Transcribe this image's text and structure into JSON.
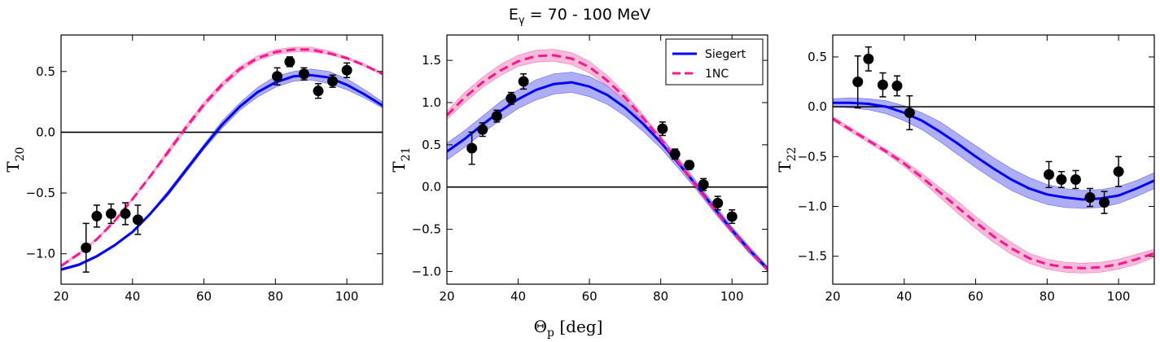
{
  "figure": {
    "title": "Eγ = 70 - 100 MeV",
    "shared_xlabel": "Θp [deg]"
  },
  "colors": {
    "siegert": "#0000ff",
    "siegert_band": "#6b6bee",
    "onenc": "#ff1493",
    "onenc_band": "#f6a6cc",
    "data": "#000000",
    "zero_line": "#000000"
  },
  "chart_data": [
    {
      "type": "line",
      "ylabel": "T20",
      "xlim": [
        20,
        110
      ],
      "ylim": [
        -1.25,
        0.8
      ],
      "xticks": [
        20,
        40,
        60,
        80,
        100
      ],
      "yticks": [
        -1.0,
        -0.5,
        0.0,
        0.5
      ],
      "ytick_labels": [
        "−1.0",
        "−0.5",
        "0.0",
        "0.5"
      ],
      "zero_line": true,
      "legend": null,
      "series": [
        {
          "name": "Siegert",
          "style": "solid",
          "x": [
            20,
            25,
            30,
            35,
            40,
            45,
            50,
            55,
            60,
            65,
            70,
            75,
            80,
            85,
            90,
            95,
            100,
            105,
            110
          ],
          "y": [
            -1.13,
            -1.09,
            -1.02,
            -0.93,
            -0.82,
            -0.67,
            -0.5,
            -0.31,
            -0.12,
            0.06,
            0.21,
            0.33,
            0.41,
            0.46,
            0.47,
            0.45,
            0.39,
            0.31,
            0.22
          ],
          "band_lower": [
            -1.14,
            -1.1,
            -1.03,
            -0.94,
            -0.83,
            -0.68,
            -0.52,
            -0.33,
            -0.14,
            0.03,
            0.18,
            0.29,
            0.37,
            0.42,
            0.43,
            0.4,
            0.35,
            0.28,
            0.2
          ],
          "band_upper": [
            -1.12,
            -1.08,
            -1.01,
            -0.92,
            -0.81,
            -0.66,
            -0.48,
            -0.29,
            -0.1,
            0.09,
            0.24,
            0.37,
            0.46,
            0.5,
            0.52,
            0.5,
            0.44,
            0.35,
            0.25
          ]
        },
        {
          "name": "1NC",
          "style": "dashed",
          "x": [
            20,
            25,
            30,
            35,
            40,
            45,
            50,
            55,
            60,
            65,
            70,
            75,
            80,
            85,
            90,
            95,
            100,
            105,
            110
          ],
          "y": [
            -1.1,
            -1.0,
            -0.88,
            -0.73,
            -0.55,
            -0.36,
            -0.16,
            0.04,
            0.23,
            0.39,
            0.52,
            0.61,
            0.66,
            0.68,
            0.68,
            0.65,
            0.61,
            0.55,
            0.48
          ],
          "band_lower": [
            -1.11,
            -1.01,
            -0.89,
            -0.74,
            -0.56,
            -0.37,
            -0.18,
            0.02,
            0.21,
            0.37,
            0.5,
            0.59,
            0.64,
            0.66,
            0.66,
            0.64,
            0.6,
            0.54,
            0.47
          ],
          "band_upper": [
            -1.09,
            -0.99,
            -0.87,
            -0.72,
            -0.54,
            -0.35,
            -0.14,
            0.06,
            0.25,
            0.41,
            0.54,
            0.63,
            0.68,
            0.7,
            0.7,
            0.67,
            0.62,
            0.56,
            0.49
          ]
        }
      ],
      "points": {
        "x": [
          27,
          30,
          34,
          38,
          41.5,
          80.5,
          84,
          88,
          92,
          96,
          100
        ],
        "y": [
          -0.95,
          -0.69,
          -0.67,
          -0.67,
          -0.72,
          0.46,
          0.58,
          0.48,
          0.34,
          0.42,
          0.51
        ],
        "err": [
          0.2,
          0.09,
          0.08,
          0.09,
          0.12,
          0.07,
          0.04,
          0.05,
          0.06,
          0.05,
          0.06
        ]
      }
    },
    {
      "type": "line",
      "ylabel": "T21",
      "xlim": [
        20,
        110
      ],
      "ylim": [
        -1.15,
        1.8
      ],
      "xticks": [
        20,
        40,
        60,
        80,
        100
      ],
      "yticks": [
        -1.0,
        -0.5,
        0.0,
        0.5,
        1.0,
        1.5
      ],
      "ytick_labels": [
        "−1.0",
        "−0.5",
        "0.0",
        "0.5",
        "1.0",
        "1.5"
      ],
      "zero_line": true,
      "legend": {
        "position": "top-right",
        "entries": [
          "Siegert",
          "1NC"
        ]
      },
      "series": [
        {
          "name": "Siegert",
          "style": "solid",
          "x": [
            20,
            25,
            30,
            35,
            40,
            45,
            50,
            55,
            60,
            65,
            70,
            75,
            80,
            85,
            90,
            95,
            100,
            105,
            110
          ],
          "y": [
            0.42,
            0.57,
            0.74,
            0.9,
            1.04,
            1.15,
            1.22,
            1.24,
            1.19,
            1.09,
            0.94,
            0.75,
            0.53,
            0.28,
            0.02,
            -0.25,
            -0.51,
            -0.75,
            -0.97
          ],
          "band_lower": [
            0.32,
            0.47,
            0.64,
            0.79,
            0.93,
            1.03,
            1.1,
            1.12,
            1.07,
            0.98,
            0.84,
            0.66,
            0.46,
            0.22,
            -0.03,
            -0.3,
            -0.55,
            -0.79,
            -1.0
          ],
          "band_upper": [
            0.52,
            0.67,
            0.84,
            1.01,
            1.15,
            1.27,
            1.34,
            1.36,
            1.31,
            1.2,
            1.04,
            0.84,
            0.6,
            0.34,
            0.07,
            -0.2,
            -0.47,
            -0.71,
            -0.94
          ]
        },
        {
          "name": "1NC",
          "style": "dashed",
          "x": [
            20,
            25,
            30,
            35,
            40,
            45,
            50,
            55,
            60,
            65,
            70,
            75,
            80,
            85,
            90,
            95,
            100,
            105,
            110
          ],
          "y": [
            0.85,
            1.06,
            1.24,
            1.38,
            1.49,
            1.55,
            1.56,
            1.52,
            1.42,
            1.26,
            1.06,
            0.82,
            0.56,
            0.29,
            0.01,
            -0.26,
            -0.52,
            -0.76,
            -0.98
          ],
          "band_lower": [
            0.8,
            1.0,
            1.18,
            1.32,
            1.43,
            1.48,
            1.49,
            1.45,
            1.35,
            1.2,
            1.01,
            0.78,
            0.53,
            0.26,
            -0.01,
            -0.28,
            -0.54,
            -0.78,
            -0.99
          ],
          "band_upper": [
            0.9,
            1.12,
            1.3,
            1.45,
            1.56,
            1.62,
            1.63,
            1.59,
            1.49,
            1.32,
            1.11,
            0.86,
            0.59,
            0.32,
            0.03,
            -0.24,
            -0.5,
            -0.74,
            -0.97
          ]
        }
      ],
      "points": {
        "x": [
          27,
          30,
          34,
          38,
          41.5,
          80.5,
          84,
          88,
          92,
          96,
          100
        ],
        "y": [
          0.46,
          0.68,
          0.84,
          1.05,
          1.25,
          0.69,
          0.39,
          0.26,
          0.03,
          -0.19,
          -0.35
        ],
        "err": [
          0.19,
          0.08,
          0.07,
          0.07,
          0.09,
          0.08,
          0.06,
          0.05,
          0.07,
          0.08,
          0.08
        ]
      }
    },
    {
      "type": "line",
      "ylabel": "T22",
      "xlim": [
        20,
        110
      ],
      "ylim": [
        -1.78,
        0.72
      ],
      "xticks": [
        20,
        40,
        60,
        80,
        100
      ],
      "yticks": [
        -1.5,
        -1.0,
        -0.5,
        0.0,
        0.5
      ],
      "ytick_labels": [
        "−1.5",
        "−1.0",
        "−0.5",
        "0.0",
        "0.5"
      ],
      "zero_line": true,
      "legend": null,
      "series": [
        {
          "name": "Siegert",
          "style": "solid",
          "x": [
            20,
            25,
            30,
            35,
            40,
            45,
            50,
            55,
            60,
            65,
            70,
            75,
            80,
            85,
            90,
            95,
            100,
            105,
            110
          ],
          "y": [
            0.04,
            0.04,
            0.03,
            0.0,
            -0.06,
            -0.14,
            -0.25,
            -0.37,
            -0.5,
            -0.62,
            -0.73,
            -0.82,
            -0.88,
            -0.91,
            -0.93,
            -0.92,
            -0.89,
            -0.82,
            -0.74
          ],
          "band_lower": [
            0.0,
            -0.01,
            -0.03,
            -0.07,
            -0.14,
            -0.23,
            -0.35,
            -0.48,
            -0.61,
            -0.73,
            -0.84,
            -0.92,
            -0.98,
            -1.01,
            -1.02,
            -1.01,
            -0.97,
            -0.9,
            -0.82
          ],
          "band_upper": [
            0.08,
            0.09,
            0.08,
            0.06,
            0.01,
            -0.06,
            -0.15,
            -0.27,
            -0.39,
            -0.51,
            -0.62,
            -0.71,
            -0.78,
            -0.82,
            -0.84,
            -0.83,
            -0.8,
            -0.74,
            -0.66
          ]
        },
        {
          "name": "1NC",
          "style": "dashed",
          "x": [
            20,
            25,
            30,
            35,
            40,
            45,
            50,
            55,
            60,
            65,
            70,
            75,
            80,
            85,
            90,
            95,
            100,
            105,
            110
          ],
          "y": [
            -0.12,
            -0.23,
            -0.34,
            -0.45,
            -0.57,
            -0.71,
            -0.86,
            -1.01,
            -1.16,
            -1.3,
            -1.42,
            -1.52,
            -1.58,
            -1.61,
            -1.62,
            -1.61,
            -1.58,
            -1.53,
            -1.47
          ],
          "band_lower": [
            -0.14,
            -0.25,
            -0.36,
            -0.47,
            -0.6,
            -0.75,
            -0.91,
            -1.07,
            -1.22,
            -1.36,
            -1.48,
            -1.57,
            -1.63,
            -1.66,
            -1.67,
            -1.66,
            -1.63,
            -1.58,
            -1.51
          ],
          "band_upper": [
            -0.1,
            -0.21,
            -0.32,
            -0.43,
            -0.54,
            -0.67,
            -0.81,
            -0.95,
            -1.1,
            -1.24,
            -1.36,
            -1.47,
            -1.53,
            -1.56,
            -1.57,
            -1.56,
            -1.53,
            -1.48,
            -1.43
          ]
        }
      ],
      "points": {
        "x": [
          27,
          30,
          34,
          38,
          41.5,
          80.5,
          84,
          88,
          92,
          96,
          100
        ],
        "y": [
          0.25,
          0.48,
          0.22,
          0.21,
          -0.06,
          -0.68,
          -0.73,
          -0.73,
          -0.91,
          -0.96,
          -0.65
        ],
        "err": [
          0.26,
          0.12,
          0.12,
          0.1,
          0.17,
          0.13,
          0.08,
          0.09,
          0.09,
          0.11,
          0.15
        ]
      }
    }
  ]
}
